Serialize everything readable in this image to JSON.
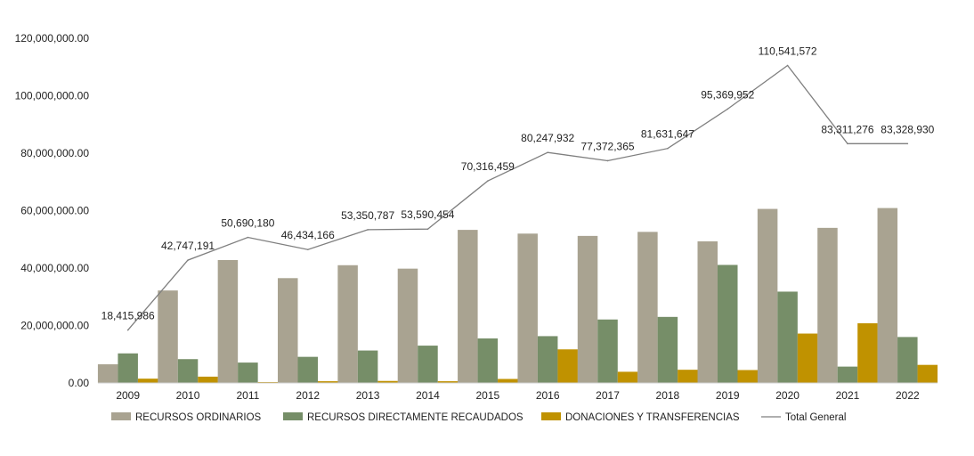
{
  "chart_data": {
    "type": "bar",
    "categories": [
      "2009",
      "2010",
      "2011",
      "2012",
      "2013",
      "2014",
      "2015",
      "2016",
      "2017",
      "2018",
      "2019",
      "2020",
      "2021",
      "2022"
    ],
    "series": [
      {
        "name": "RECURSOS ORDINARIOS",
        "type": "bar",
        "color": "#a9a391",
        "values": [
          6500000,
          32200000,
          42800000,
          36500000,
          41000000,
          39800000,
          53300000,
          52000000,
          51200000,
          52600000,
          49300000,
          60600000,
          54000000,
          60900000
        ]
      },
      {
        "name": "RECURSOS DIRECTAMENTE RECAUDADOS",
        "type": "bar",
        "color": "#768e68",
        "values": [
          10300000,
          8300000,
          7100000,
          9100000,
          11300000,
          13000000,
          15500000,
          16300000,
          22100000,
          23000000,
          41100000,
          31800000,
          5700000,
          16000000
        ]
      },
      {
        "name": "DONACIONES Y TRANSFERENCIAS",
        "type": "bar",
        "color": "#c09200",
        "values": [
          1500000,
          2200000,
          300000,
          600000,
          700000,
          600000,
          1400000,
          11700000,
          3900000,
          4600000,
          4500000,
          17200000,
          20800000,
          6300000
        ]
      },
      {
        "name": "Total General",
        "type": "line",
        "color": "#7f7f7f",
        "values": [
          18415986,
          42747191,
          50690180,
          46434166,
          53350787,
          53590454,
          70316459,
          80247932,
          77372365,
          81631647,
          95369952,
          110541572,
          83311276,
          83328930
        ]
      }
    ],
    "data_labels": [
      "18,415,986",
      "42,747,191",
      "50,690,180",
      "46,434,166",
      "53,350,787",
      "53,590,454",
      "70,316,459",
      "80,247,932",
      "77,372,365",
      "81,631,647",
      "95,369,952",
      "110,541,572",
      "83,311,276",
      "83,328,930"
    ],
    "y_ticks": [
      0,
      20000000,
      40000000,
      60000000,
      80000000,
      100000000,
      120000000
    ],
    "y_tick_labels": [
      "0.00",
      "20,000,000.00",
      "40,000,000.00",
      "60,000,000.00",
      "80,000,000.00",
      "100,000,000.00",
      "120,000,000.00"
    ],
    "ylim": [
      0,
      120000000
    ],
    "grid": false,
    "legend_position": "bottom",
    "title": "",
    "xlabel": "",
    "ylabel": ""
  }
}
